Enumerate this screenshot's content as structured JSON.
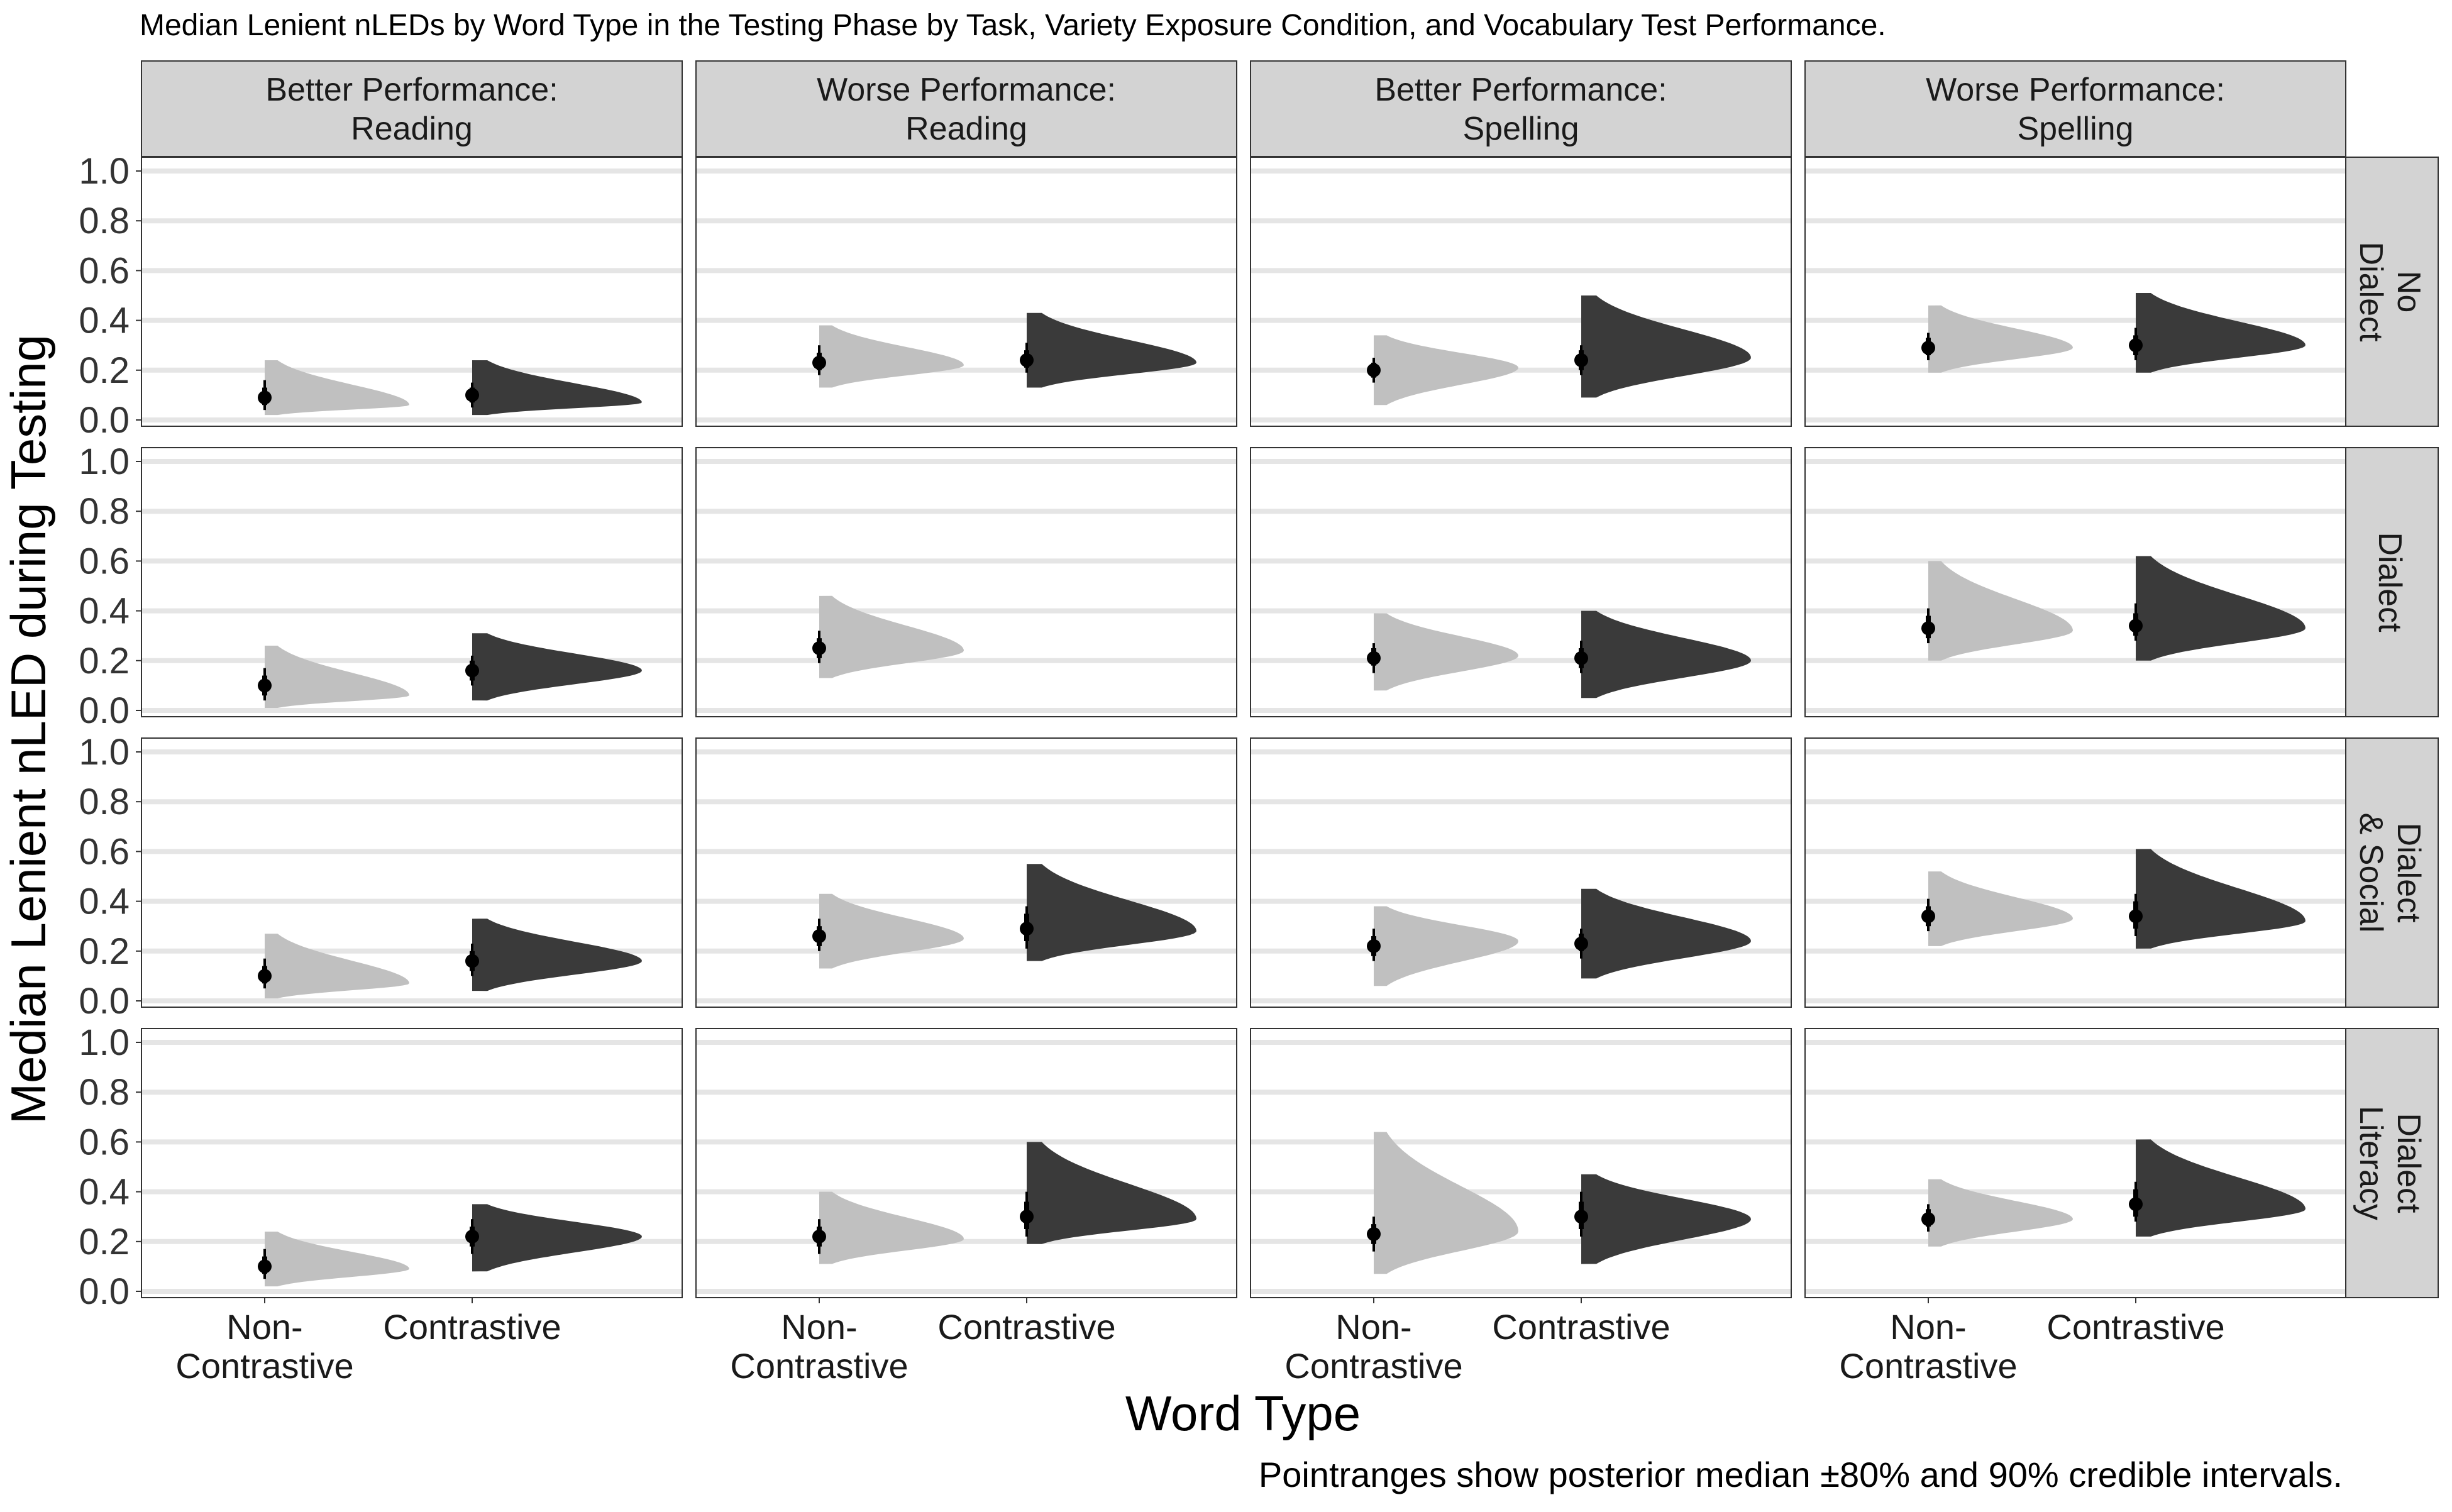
{
  "chart_data": {
    "type": "half-eye",
    "title": "Median Lenient nLEDs by Word Type in the Testing Phase by Task, Variety Exposure Condition, and Vocabulary Test Performance.",
    "xlabel": "Word Type",
    "ylabel": "Median Lenient nLED during Testing",
    "caption": "Pointranges show posterior median ±80% and 90% credible intervals.",
    "categories": [
      "Non-\nContrastive",
      "Contrastive"
    ],
    "ylim": [
      0,
      1
    ],
    "y_ticks": [
      "0.0",
      "0.2",
      "0.4",
      "0.6",
      "0.8",
      "1.0"
    ],
    "grid": true,
    "colors": {
      "Non-Contrastive": "#c0c0c0",
      "Contrastive": "#3a3a3a",
      "strip": "#d3d3d3",
      "grid": "#e5e5e5",
      "point": "#000000"
    },
    "columns": [
      "Better Performance:\nReading",
      "Worse Performance:\nReading",
      "Better Performance:\nSpelling",
      "Worse Performance:\nSpelling"
    ],
    "rows": [
      "No\nDialect",
      "Dialect",
      "Dialect\n& Social",
      "Dialect\nLiteracy"
    ],
    "panels": [
      [
        {
          "nc": {
            "median": 0.09,
            "i80": [
              0.06,
              0.13
            ],
            "i90": [
              0.04,
              0.16
            ],
            "range": [
              0.02,
              0.24
            ],
            "tail": 0.06
          },
          "c": {
            "median": 0.1,
            "i80": [
              0.07,
              0.13
            ],
            "i90": [
              0.05,
              0.15
            ],
            "range": [
              0.02,
              0.24
            ],
            "tail": 0.07
          }
        },
        {
          "nc": {
            "median": 0.23,
            "i80": [
              0.2,
              0.27
            ],
            "i90": [
              0.18,
              0.3
            ],
            "range": [
              0.13,
              0.38
            ],
            "tail": 0.22
          },
          "c": {
            "median": 0.24,
            "i80": [
              0.21,
              0.28
            ],
            "i90": [
              0.19,
              0.31
            ],
            "range": [
              0.13,
              0.43
            ],
            "tail": 0.23
          }
        },
        {
          "nc": {
            "median": 0.2,
            "i80": [
              0.17,
              0.23
            ],
            "i90": [
              0.15,
              0.25
            ],
            "range": [
              0.06,
              0.34
            ],
            "tail": 0.21
          },
          "c": {
            "median": 0.24,
            "i80": [
              0.2,
              0.28
            ],
            "i90": [
              0.18,
              0.3
            ],
            "range": [
              0.09,
              0.5
            ],
            "tail": 0.25
          }
        },
        {
          "nc": {
            "median": 0.29,
            "i80": [
              0.26,
              0.33
            ],
            "i90": [
              0.24,
              0.35
            ],
            "range": [
              0.19,
              0.46
            ],
            "tail": 0.29
          },
          "c": {
            "median": 0.3,
            "i80": [
              0.26,
              0.34
            ],
            "i90": [
              0.24,
              0.37
            ],
            "range": [
              0.19,
              0.51
            ],
            "tail": 0.3
          }
        }
      ],
      [
        {
          "nc": {
            "median": 0.1,
            "i80": [
              0.06,
              0.14
            ],
            "i90": [
              0.04,
              0.17
            ],
            "range": [
              0.01,
              0.26
            ],
            "tail": 0.06
          },
          "c": {
            "median": 0.16,
            "i80": [
              0.12,
              0.2
            ],
            "i90": [
              0.1,
              0.22
            ],
            "range": [
              0.04,
              0.31
            ],
            "tail": 0.16
          }
        },
        {
          "nc": {
            "median": 0.25,
            "i80": [
              0.21,
              0.29
            ],
            "i90": [
              0.19,
              0.32
            ],
            "range": [
              0.13,
              0.46
            ],
            "tail": 0.24
          }
        },
        {
          "nc": {
            "median": 0.21,
            "i80": [
              0.18,
              0.25
            ],
            "i90": [
              0.15,
              0.27
            ],
            "range": [
              0.08,
              0.39
            ],
            "tail": 0.22
          },
          "c": {
            "median": 0.21,
            "i80": [
              0.17,
              0.25
            ],
            "i90": [
              0.15,
              0.28
            ],
            "range": [
              0.05,
              0.4
            ],
            "tail": 0.2
          }
        },
        {
          "nc": {
            "median": 0.33,
            "i80": [
              0.29,
              0.38
            ],
            "i90": [
              0.27,
              0.41
            ],
            "range": [
              0.2,
              0.6
            ],
            "tail": 0.32
          },
          "c": {
            "median": 0.34,
            "i80": [
              0.3,
              0.39
            ],
            "i90": [
              0.28,
              0.43
            ],
            "range": [
              0.2,
              0.62
            ],
            "tail": 0.33
          }
        }
      ],
      [
        {
          "nc": {
            "median": 0.1,
            "i80": [
              0.07,
              0.14
            ],
            "i90": [
              0.05,
              0.17
            ],
            "range": [
              0.01,
              0.27
            ],
            "tail": 0.07
          },
          "c": {
            "median": 0.16,
            "i80": [
              0.12,
              0.2
            ],
            "i90": [
              0.1,
              0.23
            ],
            "range": [
              0.04,
              0.33
            ],
            "tail": 0.16
          }
        },
        {
          "nc": {
            "median": 0.26,
            "i80": [
              0.22,
              0.3
            ],
            "i90": [
              0.2,
              0.33
            ],
            "range": [
              0.13,
              0.43
            ],
            "tail": 0.25
          },
          "c": {
            "median": 0.29,
            "i80": [
              0.24,
              0.35
            ],
            "i90": [
              0.21,
              0.38
            ],
            "range": [
              0.16,
              0.55
            ],
            "tail": 0.28
          }
        },
        {
          "nc": {
            "median": 0.22,
            "i80": [
              0.18,
              0.26
            ],
            "i90": [
              0.16,
              0.29
            ],
            "range": [
              0.06,
              0.38
            ],
            "tail": 0.24
          },
          "c": {
            "median": 0.23,
            "i80": [
              0.2,
              0.27
            ],
            "i90": [
              0.17,
              0.29
            ],
            "range": [
              0.09,
              0.45
            ],
            "tail": 0.24
          }
        },
        {
          "nc": {
            "median": 0.34,
            "i80": [
              0.3,
              0.38
            ],
            "i90": [
              0.28,
              0.41
            ],
            "range": [
              0.22,
              0.52
            ],
            "tail": 0.33
          },
          "c": {
            "median": 0.34,
            "i80": [
              0.29,
              0.4
            ],
            "i90": [
              0.26,
              0.43
            ],
            "range": [
              0.21,
              0.61
            ],
            "tail": 0.32
          }
        }
      ],
      [
        {
          "nc": {
            "median": 0.1,
            "i80": [
              0.07,
              0.14
            ],
            "i90": [
              0.05,
              0.17
            ],
            "range": [
              0.02,
              0.24
            ],
            "tail": 0.09
          },
          "c": {
            "median": 0.22,
            "i80": [
              0.18,
              0.26
            ],
            "i90": [
              0.15,
              0.29
            ],
            "range": [
              0.08,
              0.35
            ],
            "tail": 0.22
          }
        },
        {
          "nc": {
            "median": 0.22,
            "i80": [
              0.18,
              0.26
            ],
            "i90": [
              0.15,
              0.29
            ],
            "range": [
              0.11,
              0.4
            ],
            "tail": 0.21
          },
          "c": {
            "median": 0.3,
            "i80": [
              0.25,
              0.36
            ],
            "i90": [
              0.22,
              0.4
            ],
            "range": [
              0.19,
              0.6
            ],
            "tail": 0.29
          }
        },
        {
          "nc": {
            "median": 0.23,
            "i80": [
              0.19,
              0.27
            ],
            "i90": [
              0.16,
              0.3
            ],
            "range": [
              0.07,
              0.64
            ],
            "tail": 0.24
          },
          "c": {
            "median": 0.3,
            "i80": [
              0.25,
              0.36
            ],
            "i90": [
              0.22,
              0.4
            ],
            "range": [
              0.11,
              0.47
            ],
            "tail": 0.29
          }
        },
        {
          "nc": {
            "median": 0.29,
            "i80": [
              0.26,
              0.33
            ],
            "i90": [
              0.24,
              0.35
            ],
            "range": [
              0.18,
              0.45
            ],
            "tail": 0.29
          },
          "c": {
            "median": 0.35,
            "i80": [
              0.3,
              0.41
            ],
            "i90": [
              0.28,
              0.44
            ],
            "range": [
              0.22,
              0.61
            ],
            "tail": 0.33
          }
        }
      ]
    ]
  }
}
